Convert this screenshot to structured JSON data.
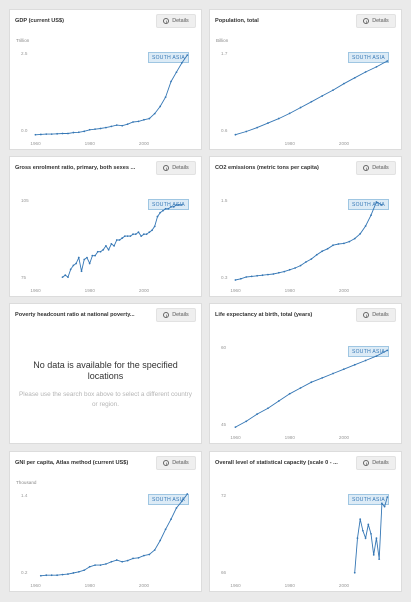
{
  "details_label": "Details",
  "region_tag": "SOUTH ASIA",
  "accent_color": "#3577b5",
  "cards": [
    {
      "title": "GDP (current US$)",
      "unit": "Trillion",
      "has_data": true
    },
    {
      "title": "Population, total",
      "unit": "Billion",
      "has_data": true
    },
    {
      "title": "Gross enrolment ratio, primary, both sexes ...",
      "unit": "",
      "has_data": true
    },
    {
      "title": "CO2 emissions (metric tons per capita)",
      "unit": "",
      "has_data": true
    },
    {
      "title": "Poverty headcount ratio at national poverty...",
      "unit": "",
      "has_data": false,
      "nodata_title": "No data is available for the specified locations",
      "nodata_msg": "Please use the search box above to select a different country or region."
    },
    {
      "title": "Life expectancy at birth, total (years)",
      "unit": "",
      "has_data": true
    },
    {
      "title": "GNI per capita, Atlas method (current US$)",
      "unit": "Thousand",
      "has_data": true
    },
    {
      "title": "Overall level of statistical capacity (scale 0 - ...",
      "unit": "",
      "has_data": true
    }
  ],
  "chart_data": [
    {
      "type": "line",
      "title": "GDP (current US$)",
      "xticks": [
        "1960",
        "1980",
        "2000"
      ],
      "yticks": [
        "2.5",
        "0.0"
      ],
      "ylim": [
        0,
        2.7
      ],
      "xlim": [
        1958,
        2017
      ],
      "series": [
        {
          "x": [
            1960,
            1962,
            1964,
            1966,
            1968,
            1970,
            1972,
            1974,
            1976,
            1978,
            1980,
            1982,
            1984,
            1986,
            1988,
            1990,
            1992,
            1994,
            1996,
            1998,
            2000,
            2002,
            2004,
            2006,
            2008,
            2010,
            2012,
            2014,
            2016
          ],
          "values": [
            0.04,
            0.05,
            0.06,
            0.06,
            0.07,
            0.08,
            0.08,
            0.11,
            0.12,
            0.15,
            0.2,
            0.22,
            0.24,
            0.27,
            0.31,
            0.35,
            0.33,
            0.38,
            0.45,
            0.47,
            0.52,
            0.56,
            0.72,
            0.95,
            1.25,
            1.75,
            2.05,
            2.35,
            2.6
          ]
        }
      ]
    },
    {
      "type": "line",
      "title": "Population, total",
      "xticks": [
        "1980",
        "2000"
      ],
      "yticks": [
        "1.7",
        "0.6"
      ],
      "ylim": [
        0.55,
        1.85
      ],
      "xlim": [
        1958,
        2017
      ],
      "series": [
        {
          "x": [
            1960,
            1964,
            1968,
            1972,
            1976,
            1980,
            1984,
            1988,
            1992,
            1996,
            2000,
            2004,
            2008,
            2012,
            2016
          ],
          "values": [
            0.57,
            0.62,
            0.68,
            0.75,
            0.82,
            0.9,
            0.99,
            1.08,
            1.17,
            1.26,
            1.36,
            1.45,
            1.54,
            1.62,
            1.71
          ]
        }
      ]
    },
    {
      "type": "line",
      "title": "Gross enrolment ratio, primary, both sexes ...",
      "xticks": [
        "1960",
        "1980",
        "2000"
      ],
      "yticks": [
        "105",
        "75"
      ],
      "ylim": [
        70,
        113
      ],
      "xlim": [
        1958,
        2017
      ],
      "series": [
        {
          "x": [
            1970,
            1971,
            1972,
            1973,
            1974,
            1975,
            1976,
            1977,
            1978,
            1979,
            1980,
            1981,
            1982,
            1983,
            1984,
            1985,
            1986,
            1987,
            1988,
            1989,
            1990,
            1991,
            1992,
            1993,
            1994,
            1995,
            1996,
            1997,
            1998,
            1999,
            2000,
            2001,
            2002,
            2003,
            2004,
            2005,
            2006,
            2007,
            2008,
            2009,
            2010,
            2011,
            2012,
            2013,
            2014
          ],
          "values": [
            73,
            74,
            73,
            77,
            79,
            80,
            83,
            76,
            82,
            83,
            80,
            84,
            84,
            86,
            86,
            87,
            89,
            87,
            90,
            89,
            92,
            92,
            93,
            94,
            94,
            94,
            95,
            95,
            96,
            94,
            95,
            95,
            96,
            97,
            99,
            104,
            106,
            107,
            108,
            108,
            109,
            109,
            110,
            110,
            110
          ]
        }
      ]
    },
    {
      "type": "line",
      "title": "CO2 emissions (metric tons per capita)",
      "xticks": [
        "1960",
        "1980",
        "2000"
      ],
      "yticks": [
        "1.5",
        "0.3"
      ],
      "ylim": [
        0.25,
        1.65
      ],
      "xlim": [
        1958,
        2017
      ],
      "series": [
        {
          "x": [
            1960,
            1962,
            1964,
            1966,
            1968,
            1970,
            1972,
            1974,
            1976,
            1978,
            1980,
            1982,
            1984,
            1986,
            1988,
            1990,
            1992,
            1994,
            1996,
            1998,
            2000,
            2002,
            2004,
            2006,
            2008,
            2010,
            2012,
            2014
          ],
          "values": [
            0.3,
            0.32,
            0.35,
            0.36,
            0.37,
            0.38,
            0.39,
            0.4,
            0.42,
            0.44,
            0.47,
            0.5,
            0.54,
            0.6,
            0.65,
            0.72,
            0.78,
            0.82,
            0.88,
            0.9,
            0.91,
            0.94,
            0.99,
            1.07,
            1.2,
            1.38,
            1.6,
            1.55
          ]
        }
      ]
    },
    {
      "type": "line",
      "title": "Life expectancy at birth, total (years)",
      "xticks": [
        "1960",
        "1980",
        "2000"
      ],
      "yticks": [
        "60",
        "45"
      ],
      "ylim": [
        41,
        70
      ],
      "xlim": [
        1958,
        2017
      ],
      "series": [
        {
          "x": [
            1960,
            1964,
            1968,
            1972,
            1976,
            1980,
            1984,
            1988,
            1992,
            1996,
            2000,
            2004,
            2008,
            2012,
            2016
          ],
          "values": [
            42,
            44,
            46.5,
            48.5,
            51,
            53.5,
            55.5,
            57.5,
            59,
            60.5,
            62,
            63.5,
            65,
            66.5,
            68.5
          ]
        }
      ]
    },
    {
      "type": "line",
      "title": "GNI per capita, Atlas method (current US$)",
      "xticks": [
        "1960",
        "1980",
        "2000"
      ],
      "yticks": [
        "1.4",
        "0.2"
      ],
      "ylim": [
        0.05,
        1.55
      ],
      "xlim": [
        1958,
        2017
      ],
      "series": [
        {
          "x": [
            1962,
            1964,
            1966,
            1968,
            1970,
            1972,
            1974,
            1976,
            1978,
            1980,
            1982,
            1984,
            1986,
            1988,
            1990,
            1992,
            1994,
            1996,
            1998,
            2000,
            2002,
            2004,
            2006,
            2008,
            2010,
            2012,
            2014,
            2016
          ],
          "values": [
            0.09,
            0.1,
            0.1,
            0.1,
            0.11,
            0.12,
            0.14,
            0.16,
            0.19,
            0.25,
            0.28,
            0.28,
            0.3,
            0.34,
            0.37,
            0.34,
            0.36,
            0.4,
            0.41,
            0.45,
            0.47,
            0.55,
            0.72,
            0.92,
            1.1,
            1.3,
            1.42,
            1.55
          ]
        }
      ]
    },
    {
      "type": "line",
      "title": "Overall level of statistical capacity (scale 0 - ...",
      "xticks": [
        "1960",
        "1980",
        "2000"
      ],
      "yticks": [
        "72",
        "66"
      ],
      "ylim": [
        65,
        73
      ],
      "xlim": [
        1958,
        2017
      ],
      "series": [
        {
          "x": [
            2004,
            2005,
            2006,
            2007,
            2008,
            2009,
            2010,
            2011,
            2012,
            2013,
            2014,
            2015,
            2016
          ],
          "values": [
            65.5,
            68.8,
            70.6,
            69.5,
            68.8,
            70.1,
            69.2,
            67.2,
            68.8,
            66.8,
            72.1,
            71.8,
            72.7
          ]
        }
      ]
    }
  ]
}
